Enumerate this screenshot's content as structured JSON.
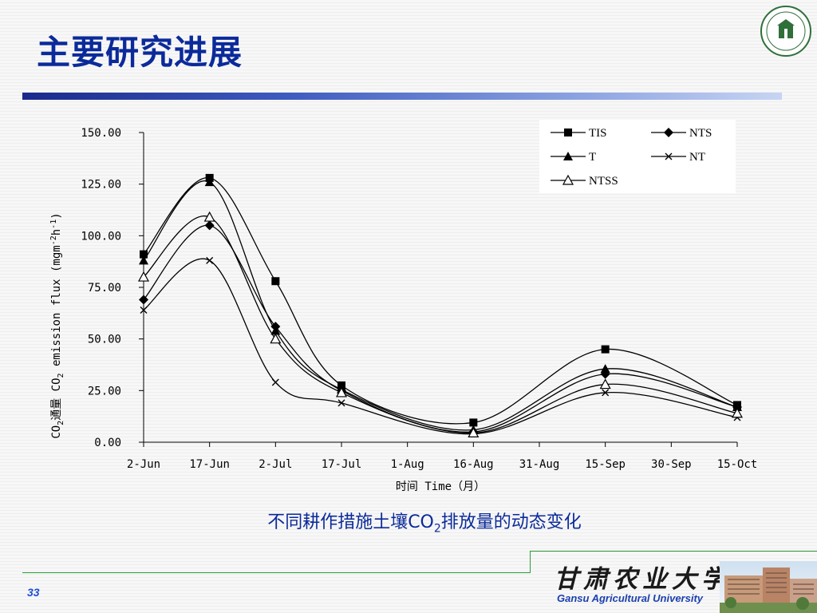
{
  "slide": {
    "title": "主要研究进展",
    "page_number": "33",
    "caption_prefix": "不同耕作措施土壤CO",
    "caption_sub": "2",
    "caption_suffix": "排放量的动态变化",
    "university_cn": "甘肃农业大学",
    "university_en": "Gansu Agricultural University"
  },
  "chart_data": {
    "type": "line",
    "categories": [
      "2-Jun",
      "17-Jun",
      "2-Jul",
      "17-Jul",
      "1-Aug",
      "16-Aug",
      "31-Aug",
      "15-Sep",
      "30-Sep",
      "15-Oct"
    ],
    "xlabel": "时间  Time（月）",
    "ylabel_prefix": "CO",
    "ylabel_sub": "2",
    "ylabel_mid": "通量  CO",
    "ylabel_sub2": "2",
    "ylabel_mid2": " emission flux (mgm",
    "ylabel_sup1": "-2",
    "ylabel_mid3": "h",
    "ylabel_sup2": "-1",
    "ylabel_end": ")",
    "ylim": [
      0,
      150
    ],
    "yticks": [
      "0.00",
      "25.00",
      "50.00",
      "75.00",
      "100.00",
      "125.00",
      "150.00"
    ],
    "grid": false,
    "legend_position": "top-right",
    "series": [
      {
        "name": "TIS",
        "marker": "square",
        "x": [
          0,
          1,
          2,
          3,
          5,
          7,
          9
        ],
        "values": [
          91,
          128,
          78,
          27.5,
          9.5,
          45,
          18
        ]
      },
      {
        "name": "NTS",
        "marker": "diamond",
        "x": [
          0,
          1,
          2,
          3,
          5,
          7,
          9
        ],
        "values": [
          69,
          105,
          56,
          25,
          5,
          33,
          17
        ]
      },
      {
        "name": "T",
        "marker": "triangle",
        "x": [
          0,
          1,
          2,
          3,
          5,
          7,
          9
        ],
        "values": [
          88,
          126,
          54,
          25.5,
          6,
          35.5,
          17
        ]
      },
      {
        "name": "NT",
        "marker": "x",
        "x": [
          0,
          1,
          2,
          3,
          5,
          7,
          9
        ],
        "values": [
          64,
          88,
          29,
          19,
          4,
          24,
          12
        ]
      },
      {
        "name": "NTSS",
        "marker": "triangle-open",
        "x": [
          0,
          1,
          2,
          3,
          5,
          7,
          9
        ],
        "values": [
          80,
          109,
          50,
          24,
          4.5,
          28,
          14
        ]
      }
    ]
  }
}
